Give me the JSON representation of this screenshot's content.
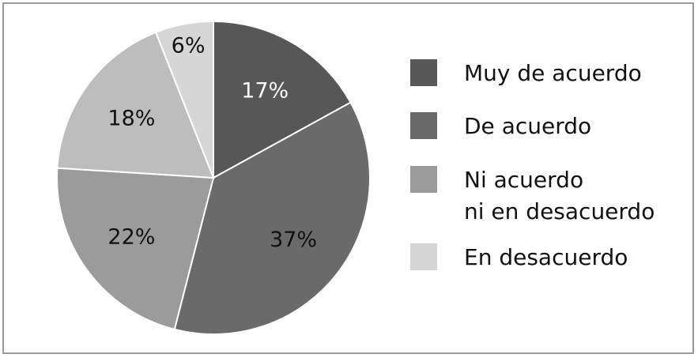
{
  "chart_data": {
    "type": "pie",
    "title": "",
    "legend_position": "right",
    "slices": [
      {
        "label": "Muy de acuerdo",
        "value": 17,
        "display": "17%",
        "color": "#575757",
        "label_color": "#ffffff"
      },
      {
        "label": "De acuerdo",
        "value": 37,
        "display": "37%",
        "color": "#6a6a6a",
        "label_color": "#111111"
      },
      {
        "label": "Ni acuerdo ni en desacuerdo",
        "value": 22,
        "display": "22%",
        "color": "#9b9b9b",
        "label_color": "#111111"
      },
      {
        "label": "18%",
        "value": 18,
        "display": "18%",
        "color": "#bdbdbd",
        "label_color": "#111111",
        "legend": false
      },
      {
        "label": "En desacuerdo",
        "value": 6,
        "display": "6%",
        "color": "#d6d6d6",
        "label_color": "#111111"
      }
    ],
    "legend": [
      {
        "lines": [
          "Muy de acuerdo"
        ],
        "color": "#575757"
      },
      {
        "lines": [
          "De acuerdo"
        ],
        "color": "#6a6a6a"
      },
      {
        "lines": [
          "Ni acuerdo",
          "ni en desacuerdo"
        ],
        "color": "#9b9b9b"
      },
      {
        "lines": [
          "En desacuerdo"
        ],
        "color": "#d6d6d6"
      }
    ]
  }
}
